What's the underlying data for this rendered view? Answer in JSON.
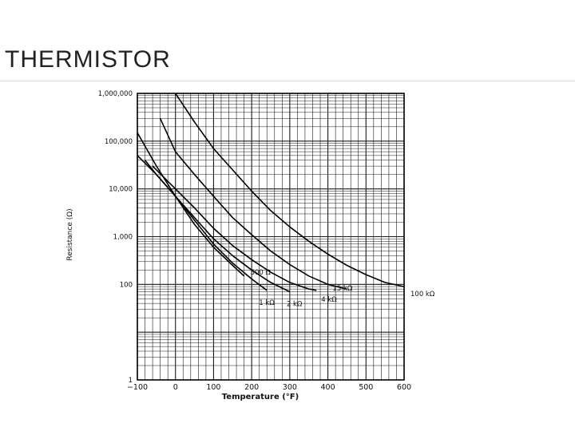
{
  "slide": {
    "title": "THERMISTOR"
  },
  "chart_data": {
    "type": "line",
    "title": "",
    "xlabel": "Temperature (°F)",
    "ylabel": "Resistance (Ω)",
    "xlim": [
      -100,
      600
    ],
    "ylim": [
      1,
      1000000
    ],
    "y_scale": "log",
    "grid": true,
    "x_ticks": [
      -100,
      0,
      100,
      200,
      300,
      400,
      500,
      600
    ],
    "x_tick_labels": [
      "−100",
      "0",
      "100",
      "200",
      "300",
      "400",
      "500",
      "600"
    ],
    "y_ticks": [
      1,
      100,
      1000,
      10000,
      100000,
      1000000
    ],
    "y_tick_labels": [
      "1",
      "100",
      "1,000",
      "10,000",
      "100,000",
      "1,000,000"
    ],
    "series": [
      {
        "name": "500 Ω",
        "x": [
          -100,
          -50,
          0,
          50,
          100,
          150,
          180
        ],
        "y": [
          150000,
          30000,
          7000,
          1800,
          600,
          250,
          150
        ]
      },
      {
        "name": "1 kΩ",
        "x": [
          -100,
          -50,
          0,
          50,
          100,
          150,
          200,
          240
        ],
        "y": [
          50000,
          20000,
          7000,
          2200,
          700,
          280,
          130,
          75
        ]
      },
      {
        "name": "2 kΩ",
        "x": [
          -80,
          -50,
          0,
          50,
          100,
          150,
          200,
          250,
          300
        ],
        "y": [
          40000,
          20000,
          7000,
          2500,
          900,
          400,
          200,
          110,
          70
        ]
      },
      {
        "name": "4 kΩ",
        "x": [
          -60,
          -50,
          0,
          50,
          100,
          150,
          200,
          250,
          300,
          350,
          370
        ],
        "y": [
          30000,
          25000,
          10000,
          4000,
          1500,
          650,
          330,
          180,
          110,
          80,
          75
        ]
      },
      {
        "name": "15 kΩ",
        "x": [
          -40,
          0,
          50,
          100,
          150,
          200,
          250,
          300,
          350,
          400,
          450
        ],
        "y": [
          300000,
          60000,
          20000,
          7000,
          2500,
          1100,
          500,
          260,
          150,
          100,
          80
        ]
      },
      {
        "name": "100 kΩ",
        "x": [
          0,
          50,
          100,
          150,
          200,
          250,
          300,
          350,
          400,
          450,
          500,
          550,
          600
        ],
        "y": [
          1000000,
          250000,
          70000,
          25000,
          9000,
          3500,
          1600,
          800,
          430,
          250,
          160,
          110,
          90
        ]
      }
    ],
    "annotations": [
      "500 Ω",
      "1 kΩ",
      "2 kΩ",
      "4 kΩ",
      "15 kΩ",
      "100 kΩ"
    ]
  }
}
